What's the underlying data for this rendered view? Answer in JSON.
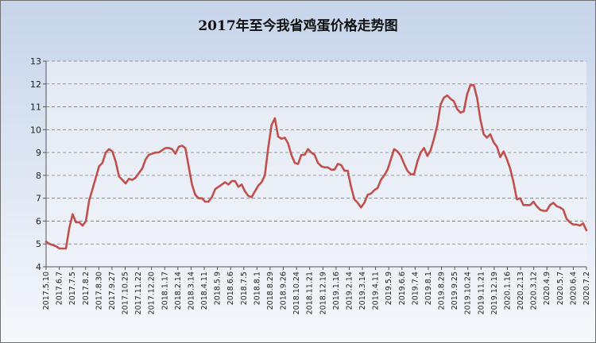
{
  "chart_data": {
    "type": "line",
    "title": "2017年至今我省鸡蛋价格走势图",
    "xlabel": "",
    "ylabel": "",
    "ylim": [
      4,
      13
    ],
    "yticks": [
      4,
      5,
      6,
      7,
      8,
      9,
      10,
      11,
      12,
      13
    ],
    "grid": true,
    "legend": "none",
    "colors": {
      "line": "#c0504d",
      "plot_bg": "#f2f4f8",
      "grid": "#7f7f7f"
    },
    "x_tick_labels": [
      "2017.5.10",
      "2017.6.7",
      "2017.7.5",
      "2017.8.2",
      "2017.8.30",
      "2017.9.27",
      "2017.10.25",
      "2017.11.22",
      "2017.12.20",
      "2018.1.17",
      "2018.2.14",
      "2018.3.14",
      "2018.4.11",
      "2018.5.9",
      "2018.6.6",
      "2018.7.5",
      "2018.8.1",
      "2018.8.29",
      "2018.9.26",
      "2018.10.24",
      "2018.11.21",
      "2018.12.19",
      "2019.1.16",
      "2019.2.14",
      "2019.3.14",
      "2019.4.11",
      "2019.5.9",
      "2019.6.6",
      "2019.7.4",
      "2019.8.1",
      "2019.8.29",
      "2019.9.25",
      "2019.10.24",
      "2019.11.21",
      "2019.12.19",
      "2020.1.16",
      "2020.2.13",
      "2020.3.12",
      "2020.4.9",
      "2020.5.7",
      "2020.6.4",
      "2020.7.2"
    ],
    "series": [
      {
        "values": [
          5.1,
          5.0,
          4.95,
          4.9,
          4.8,
          4.8,
          4.8,
          5.7,
          6.3,
          5.95,
          5.95,
          5.8,
          6.0,
          6.9,
          7.4,
          7.9,
          8.4,
          8.55,
          9.0,
          9.15,
          9.05,
          8.6,
          7.95,
          7.8,
          7.65,
          7.85,
          7.8,
          7.9,
          8.1,
          8.3,
          8.7,
          8.9,
          8.95,
          9.0,
          9.0,
          9.1,
          9.2,
          9.2,
          9.15,
          8.95,
          9.25,
          9.3,
          9.2,
          8.4,
          7.6,
          7.15,
          7.0,
          7.0,
          6.85,
          6.85,
          7.05,
          7.4,
          7.5,
          7.6,
          7.7,
          7.6,
          7.75,
          7.75,
          7.5,
          7.6,
          7.3,
          7.1,
          7.05,
          7.3,
          7.55,
          7.7,
          8.0,
          9.2,
          10.2,
          10.5,
          9.7,
          9.6,
          9.65,
          9.4,
          8.9,
          8.55,
          8.5,
          8.9,
          8.9,
          9.15,
          9.0,
          8.9,
          8.55,
          8.4,
          8.35,
          8.35,
          8.25,
          8.25,
          8.5,
          8.45,
          8.2,
          8.2,
          7.5,
          6.95,
          6.8,
          6.6,
          6.8,
          7.15,
          7.2,
          7.35,
          7.45,
          7.8,
          8.0,
          8.25,
          8.7,
          9.15,
          9.05,
          8.85,
          8.5,
          8.2,
          8.05,
          8.05,
          8.6,
          9.0,
          9.2,
          8.85,
          9.1,
          9.6,
          10.2,
          11.1,
          11.4,
          11.5,
          11.35,
          11.25,
          10.9,
          10.75,
          10.8,
          11.55,
          11.95,
          11.95,
          11.4,
          10.45,
          9.8,
          9.65,
          9.8,
          9.45,
          9.25,
          8.8,
          9.05,
          8.7,
          8.3,
          7.7,
          6.95,
          7.0,
          6.7,
          6.7,
          6.7,
          6.85,
          6.65,
          6.5,
          6.45,
          6.45,
          6.7,
          6.8,
          6.65,
          6.6,
          6.5,
          6.1,
          5.95,
          5.85,
          5.85,
          5.8,
          5.9,
          5.6
        ]
      }
    ]
  }
}
